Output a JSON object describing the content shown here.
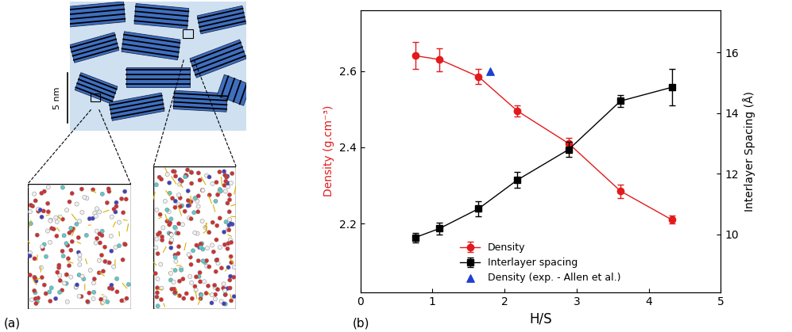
{
  "chart_data": {
    "type": "line",
    "x": [
      0.76,
      1.1,
      1.64,
      2.18,
      2.89,
      3.61,
      4.32
    ],
    "series": [
      {
        "name": "Density",
        "color": "#e31a1c",
        "marker": "circle",
        "line_style": "solid",
        "values": [
          2.64,
          2.63,
          2.585,
          2.495,
          2.41,
          2.285,
          2.21
        ],
        "errors": [
          0.035,
          0.03,
          0.02,
          0.015,
          0.015,
          0.018,
          0.01
        ]
      },
      {
        "name": "Interlayer spacing",
        "color": "#000000",
        "marker": "square",
        "line_style": "solid",
        "axis": "y2",
        "values": [
          9.9,
          10.2,
          10.85,
          11.8,
          12.8,
          14.4,
          14.85
        ],
        "errors": [
          0.15,
          0.2,
          0.25,
          0.25,
          0.25,
          0.2,
          0.6
        ]
      },
      {
        "name": "Density (exp. - Allen et al.)",
        "color": "#1f3fd0",
        "marker": "triangle",
        "type": "scatter",
        "x": [
          1.8
        ],
        "values": [
          2.6
        ]
      }
    ],
    "xlabel": "H/S",
    "ylabel": "Density (g.cm⁻³)",
    "y2label": "Interlayer Spacing (Å)",
    "xlim": [
      0,
      5
    ],
    "xticks": [
      0,
      1,
      2,
      3,
      4,
      5
    ],
    "ylim": [
      2.02,
      2.76
    ],
    "yticks": [
      2.2,
      2.4,
      2.6
    ],
    "y2lim": [
      8.1,
      17.4
    ],
    "y2ticks": [
      10,
      12,
      14,
      16
    ],
    "legend": "lower center"
  },
  "diagram": {
    "scale_bar": "5 nm",
    "panel_labels": [
      "(a)",
      "(b)"
    ]
  }
}
